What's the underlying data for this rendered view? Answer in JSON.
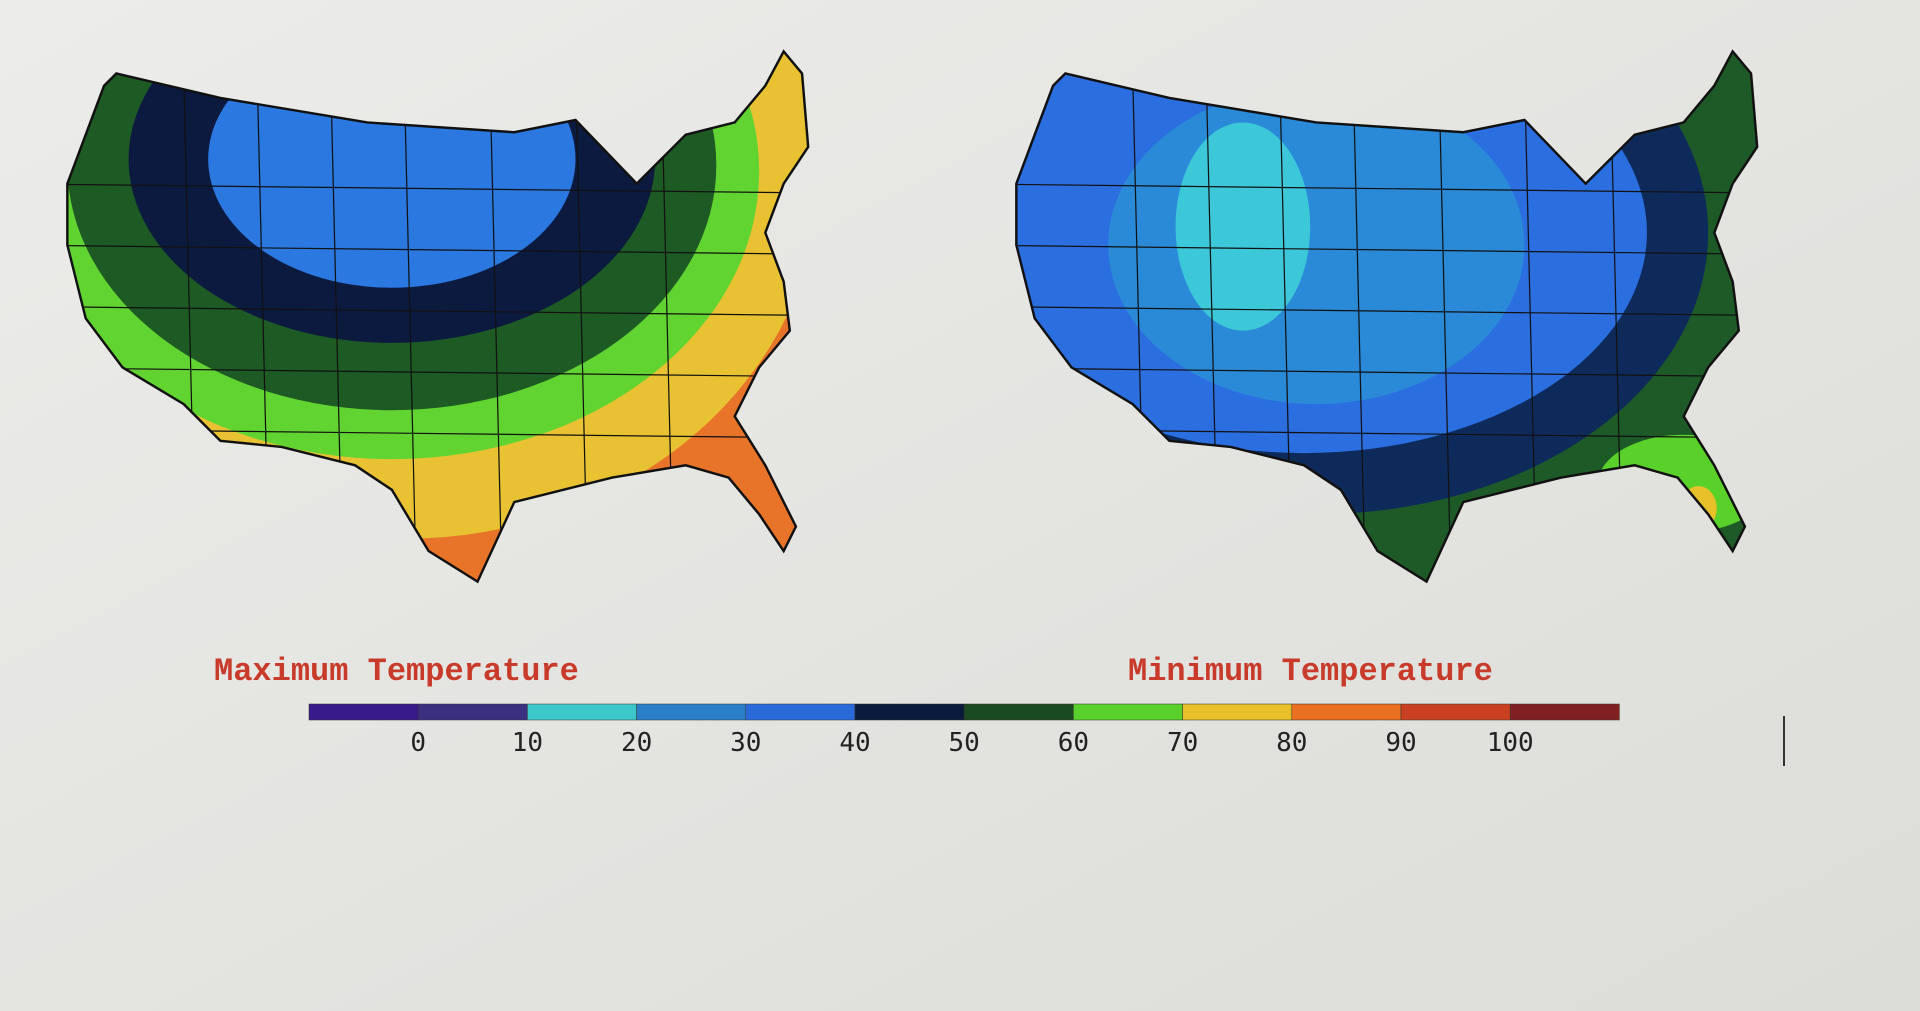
{
  "maps": [
    {
      "title": "Maximum Temperature",
      "bands": [
        "#e8742a",
        "#e8c232",
        "#62d432",
        "#1e5a24",
        "#0c1a40",
        "#2a78e0"
      ]
    },
    {
      "title": "Minimum Temperature",
      "bands": [
        "#1e5a28",
        "#0e2a5a",
        "#2a6ee0",
        "#2a8ad8",
        "#3cc8d8"
      ]
    }
  ],
  "legend": {
    "colors": [
      "#3a1a8a",
      "#3a2f80",
      "#3cc8c8",
      "#2a7fc8",
      "#2a6ad8",
      "#0a1a3a",
      "#1a4a20",
      "#5ad02a",
      "#e8c02a",
      "#e87020",
      "#c84020",
      "#802020"
    ],
    "ticks": [
      0,
      10,
      20,
      30,
      40,
      50,
      60,
      70,
      80,
      90,
      100
    ]
  }
}
